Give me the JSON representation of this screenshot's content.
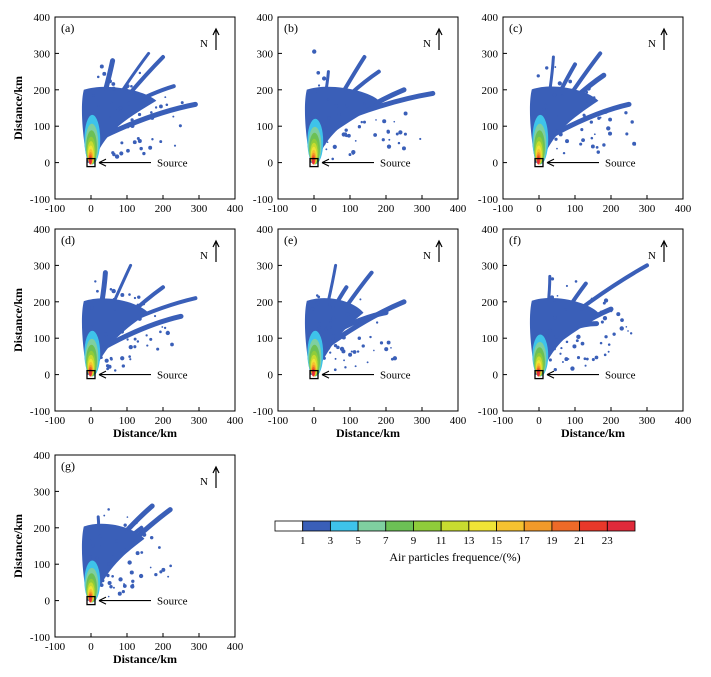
{
  "figure": {
    "x_axis_label": "Distance/km",
    "y_axis_label": "Distance/km",
    "source_label": "Source",
    "north_label": "N",
    "colorbar_label": "Air particles frequence/(%)"
  },
  "chart_data": [
    {
      "type": "heatmap",
      "panel": "(a)",
      "xlim": [
        -100,
        400
      ],
      "ylim": [
        -100,
        400
      ],
      "xticks": [
        -100,
        0,
        100,
        200,
        300,
        400
      ],
      "yticks": [
        -100,
        0,
        100,
        200,
        300,
        400
      ],
      "xlabel": "",
      "ylabel": "Distance/km",
      "source_point": [
        0,
        0
      ],
      "plume": {
        "core_extent_km": 120,
        "max_extent_km": 330,
        "main_direction": "north-northeast",
        "arms": [
          [
            290,
            160
          ],
          [
            200,
            290
          ],
          [
            160,
            300
          ],
          [
            60,
            280
          ],
          [
            230,
            210
          ],
          [
            100,
            210
          ]
        ]
      }
    },
    {
      "type": "heatmap",
      "panel": "(b)",
      "xlim": [
        -100,
        400
      ],
      "ylim": [
        -100,
        400
      ],
      "xticks": [
        -100,
        0,
        100,
        200,
        300,
        400
      ],
      "yticks": [
        -100,
        0,
        100,
        200,
        300,
        400
      ],
      "xlabel": "",
      "ylabel": "",
      "source_point": [
        0,
        0
      ],
      "plume": {
        "core_extent_km": 110,
        "max_extent_km": 330,
        "main_direction": "north-northeast",
        "arms": [
          [
            250,
            200
          ],
          [
            140,
            290
          ],
          [
            40,
            250
          ],
          [
            330,
            190
          ],
          [
            180,
            250
          ]
        ]
      }
    },
    {
      "type": "heatmap",
      "panel": "(c)",
      "xlim": [
        -100,
        400
      ],
      "ylim": [
        -100,
        400
      ],
      "xticks": [
        -100,
        0,
        100,
        200,
        300,
        400
      ],
      "yticks": [
        -100,
        0,
        100,
        200,
        300,
        400
      ],
      "xlabel": "",
      "ylabel": "",
      "source_point": [
        0,
        0
      ],
      "plume": {
        "core_extent_km": 120,
        "max_extent_km": 300,
        "main_direction": "north-northeast",
        "arms": [
          [
            250,
            160
          ],
          [
            170,
            300
          ],
          [
            40,
            290
          ],
          [
            180,
            240
          ],
          [
            100,
            270
          ]
        ]
      }
    },
    {
      "type": "heatmap",
      "panel": "(d)",
      "xlim": [
        -100,
        400
      ],
      "ylim": [
        -100,
        400
      ],
      "xticks": [
        -100,
        0,
        100,
        200,
        300,
        400
      ],
      "yticks": [
        -100,
        0,
        100,
        200,
        300,
        400
      ],
      "xlabel": "Distance/km",
      "ylabel": "Distance/km",
      "source_point": [
        0,
        0
      ],
      "plume": {
        "core_extent_km": 110,
        "max_extent_km": 290,
        "main_direction": "north-northeast",
        "arms": [
          [
            250,
            160
          ],
          [
            200,
            240
          ],
          [
            110,
            300
          ],
          [
            40,
            280
          ],
          [
            290,
            210
          ]
        ]
      }
    },
    {
      "type": "heatmap",
      "panel": "(e)",
      "xlim": [
        -100,
        400
      ],
      "ylim": [
        -100,
        400
      ],
      "xticks": [
        -100,
        0,
        100,
        200,
        300,
        400
      ],
      "yticks": [
        -100,
        0,
        100,
        200,
        300,
        400
      ],
      "xlabel": "Distance/km",
      "ylabel": "",
      "source_point": [
        0,
        0
      ],
      "plume": {
        "core_extent_km": 110,
        "max_extent_km": 250,
        "main_direction": "north-northeast",
        "arms": [
          [
            250,
            200
          ],
          [
            160,
            280
          ],
          [
            60,
            300
          ],
          [
            200,
            170
          ],
          [
            90,
            240
          ]
        ]
      }
    },
    {
      "type": "heatmap",
      "panel": "(f)",
      "xlim": [
        -100,
        400
      ],
      "ylim": [
        -100,
        400
      ],
      "xticks": [
        -100,
        0,
        100,
        200,
        300,
        400
      ],
      "yticks": [
        -100,
        0,
        100,
        200,
        300,
        400
      ],
      "xlabel": "Distance/km",
      "ylabel": "",
      "source_point": [
        0,
        0
      ],
      "plume": {
        "core_extent_km": 100,
        "max_extent_km": 300,
        "main_direction": "north-northeast",
        "arms": [
          [
            200,
            180
          ],
          [
            130,
            250
          ],
          [
            30,
            270
          ],
          [
            160,
            140
          ],
          [
            300,
            300
          ]
        ]
      }
    },
    {
      "type": "heatmap",
      "panel": "(g)",
      "xlim": [
        -100,
        400
      ],
      "ylim": [
        -100,
        400
      ],
      "xticks": [
        -100,
        0,
        100,
        200,
        300,
        400
      ],
      "yticks": [
        -100,
        0,
        100,
        200,
        300,
        400
      ],
      "xlabel": "Distance/km",
      "ylabel": "Distance/km",
      "source_point": [
        0,
        0
      ],
      "plume": {
        "core_extent_km": 100,
        "max_extent_km": 270,
        "main_direction": "north-northeast",
        "arms": [
          [
            220,
            250
          ],
          [
            140,
            200
          ],
          [
            20,
            230
          ],
          [
            170,
            260
          ]
        ]
      }
    }
  ],
  "colorbar": {
    "ticks": [
      "1",
      "3",
      "5",
      "7",
      "9",
      "11",
      "13",
      "15",
      "17",
      "19",
      "21",
      "23"
    ],
    "colors": [
      "#ffffff",
      "#3a5fb8",
      "#3ec3ea",
      "#7fcfa0",
      "#6cc055",
      "#8fcc3a",
      "#c8dc30",
      "#f0e436",
      "#f6c230",
      "#f29a2a",
      "#ee6a28",
      "#e8382a",
      "#e02a3a"
    ]
  }
}
